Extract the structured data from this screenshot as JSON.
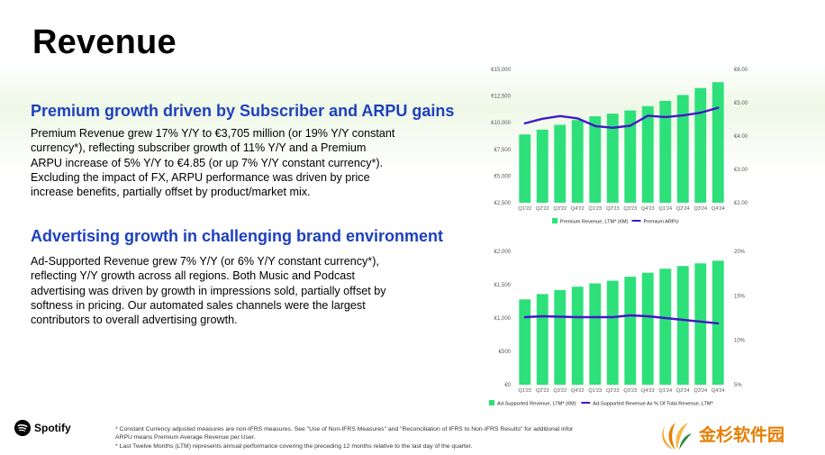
{
  "page": {
    "title": "Revenue"
  },
  "premium": {
    "heading": "Premium growth driven by Subscriber and ARPU gains",
    "lines": [
      "Premium Revenue grew 17% Y/Y to €3,705 million (or 19% Y/Y constant",
      "currency*), reflecting subscriber growth of 11% Y/Y and a Premium",
      "ARPU increase of 5% Y/Y to €4.85 (or up 7% Y/Y constant currency*).",
      "Excluding the impact of FX, ARPU performance was driven by price",
      "increase benefits, partially offset by product/market mix."
    ]
  },
  "advertising": {
    "heading": "Advertising growth in challenging brand environment",
    "lines": [
      "Ad-Supported Revenue grew 7% Y/Y (or 6% Y/Y constant currency*),",
      "reflecting Y/Y growth across all regions. Both Music and Podcast",
      "advertising was driven by growth in impressions sold, partially offset by",
      "softness in pricing. Our automated sales channels were the largest",
      "contributors to overall advertising growth."
    ]
  },
  "footer": {
    "brand": "Spotify",
    "footnote_1": "* Constant Currency adjusted measures are non-IFRS measures. See \"Use of Non-IFRS Measures\" and \"Reconciliation of IFRS to Non-IFRS Results\" for additional infor",
    "footnote_2": "ARPU means Premium Average Revenue per User.",
    "footnote_3": "* Last Twelve Months (LTM) represents annual performance covering the preceding 12 months relative to the last day of the quarter.",
    "watermark": "金杉软件园"
  },
  "colors": {
    "bar": "#2ee07a",
    "line": "#4318c8",
    "heading": "#1d3fbf",
    "axis_text": "#555555"
  },
  "chart_data": [
    {
      "type": "bar",
      "categories": [
        "Q1'22",
        "Q2'22",
        "Q3'22",
        "Q4'22",
        "Q1'23",
        "Q2'23",
        "Q3'23",
        "Q4'23",
        "Q1'24",
        "Q2'24",
        "Q3'24",
        "Q4'24"
      ],
      "series": [
        {
          "name": "Premium Revenue, LTM* (€M)",
          "type": "bar",
          "axis": "left",
          "values": [
            8900,
            9350,
            9800,
            10250,
            10600,
            10850,
            11150,
            11550,
            12050,
            12600,
            13250,
            13800
          ]
        },
        {
          "name": "Premium ARPU",
          "type": "line",
          "axis": "right",
          "values": [
            4.38,
            4.52,
            4.6,
            4.53,
            4.3,
            4.25,
            4.31,
            4.61,
            4.57,
            4.62,
            4.7,
            4.85
          ]
        }
      ],
      "left_ticks": [
        "€2,500",
        "€5,000",
        "€7,500",
        "€10,000",
        "€12,500",
        "€15,000"
      ],
      "right_ticks": [
        "€2.00",
        "€3.00",
        "€4.00",
        "€5.00",
        "€6.00"
      ],
      "ylim_left": [
        2500,
        15000
      ],
      "ylim_right": [
        2,
        6
      ],
      "legend_position": "bottom"
    },
    {
      "type": "bar",
      "categories": [
        "Q1'22",
        "Q2'22",
        "Q3'22",
        "Q4'22",
        "Q1'23",
        "Q2'23",
        "Q3'23",
        "Q4'23",
        "Q1'24",
        "Q2'24",
        "Q3'24",
        "Q4'24"
      ],
      "series": [
        {
          "name": "Ad-Supported Revenue, LTM* (€M)",
          "type": "bar",
          "axis": "left",
          "values": [
            1280,
            1360,
            1420,
            1470,
            1520,
            1560,
            1620,
            1680,
            1740,
            1780,
            1820,
            1860
          ]
        },
        {
          "name": "Ad-Supported Revenue As % Of Total Revenue, LTM*",
          "type": "line",
          "axis": "right",
          "values": [
            12.6,
            12.7,
            12.65,
            12.6,
            12.6,
            12.6,
            12.8,
            12.7,
            12.5,
            12.3,
            12.1,
            11.9
          ]
        }
      ],
      "left_ticks": [
        "€0",
        "€500",
        "€1,000",
        "€1,500",
        "€2,000"
      ],
      "right_ticks": [
        "5%",
        "10%",
        "15%",
        "20%"
      ],
      "ylim_left": [
        0,
        2000
      ],
      "ylim_right": [
        5,
        20
      ],
      "legend_position": "bottom"
    }
  ]
}
